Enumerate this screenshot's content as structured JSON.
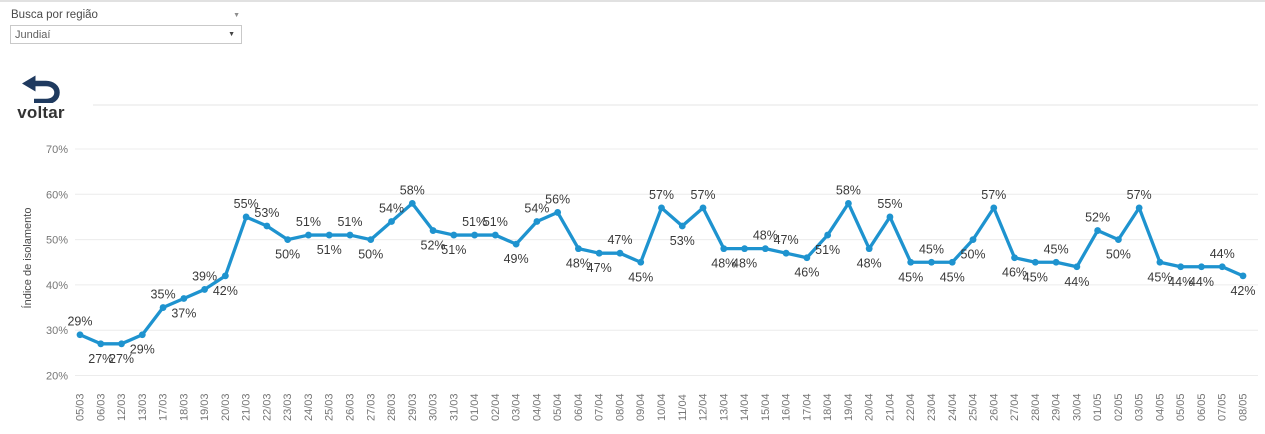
{
  "param_control": {
    "label": "Busca por região",
    "value": "Jundiaí",
    "caret": "▼"
  },
  "back_button": {
    "label": "voltar"
  },
  "colors": {
    "line": "#1e93cf",
    "icon": "#1f3a5f",
    "grid": "#ececec",
    "axis_text": "#767676",
    "data_label_text": "#3a3a3a"
  },
  "chart_data": {
    "type": "line",
    "title": "",
    "xlabel": "",
    "ylabel": "Índice de isolamento",
    "unit": "%",
    "grid": true,
    "legend": "none",
    "yticks": [
      20,
      30,
      40,
      50,
      60,
      70
    ],
    "ylim": [
      17,
      75
    ],
    "x": [
      "05/03",
      "06/03",
      "12/03",
      "13/03",
      "17/03",
      "18/03",
      "19/03",
      "20/03",
      "21/03",
      "22/03",
      "23/03",
      "24/03",
      "25/03",
      "26/03",
      "27/03",
      "28/03",
      "29/03",
      "30/03",
      "31/03",
      "01/04",
      "02/04",
      "03/04",
      "04/04",
      "05/04",
      "06/04",
      "07/04",
      "08/04",
      "09/04",
      "10/04",
      "11/04",
      "12/04",
      "13/04",
      "14/04",
      "15/04",
      "16/04",
      "17/04",
      "18/04",
      "19/04",
      "20/04",
      "21/04",
      "22/04",
      "23/04",
      "24/04",
      "25/04",
      "26/04",
      "27/04",
      "28/04",
      "29/04",
      "30/04",
      "01/05",
      "02/05",
      "03/05",
      "04/05",
      "05/05",
      "06/05",
      "07/05",
      "08/05"
    ],
    "values": [
      29,
      27,
      27,
      29,
      35,
      37,
      39,
      42,
      55,
      53,
      50,
      51,
      51,
      51,
      50,
      54,
      58,
      52,
      51,
      51,
      51,
      49,
      54,
      56,
      48,
      47,
      47,
      45,
      57,
      53,
      57,
      48,
      48,
      48,
      47,
      46,
      51,
      58,
      48,
      55,
      45,
      45,
      45,
      50,
      57,
      46,
      45,
      45,
      44,
      52,
      50,
      57,
      45,
      44,
      44,
      44,
      42
    ],
    "label_side": [
      "above",
      "below",
      "below",
      "below",
      "above",
      "below",
      "above",
      "below",
      "above",
      "above",
      "below",
      "above",
      "below",
      "above",
      "below",
      "above",
      "above",
      "below",
      "below",
      "above",
      "above",
      "below",
      "above",
      "above",
      "below",
      "below",
      "above",
      "below",
      "above",
      "below",
      "above",
      "below",
      "below",
      "above",
      "above",
      "below",
      "below",
      "above",
      "below",
      "above",
      "below",
      "above",
      "below",
      "below",
      "above",
      "below",
      "below",
      "above",
      "below",
      "above",
      "below",
      "above",
      "below",
      "below",
      "below",
      "above",
      "below"
    ]
  }
}
